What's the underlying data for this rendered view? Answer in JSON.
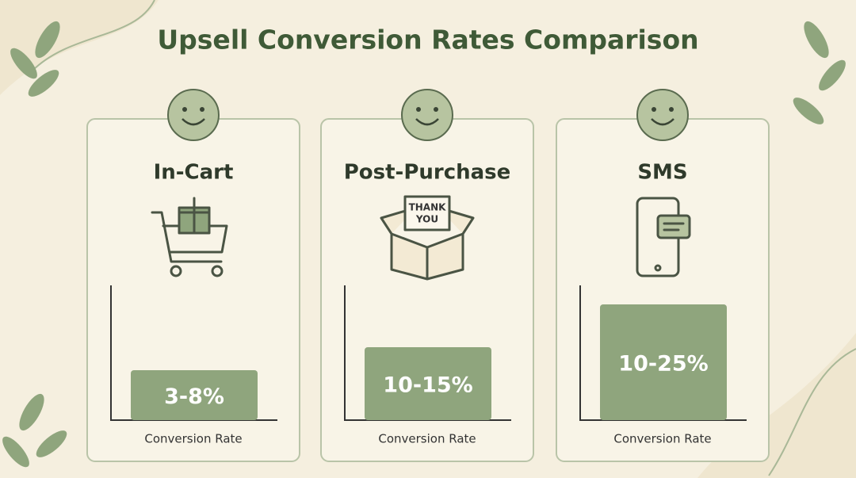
{
  "header": {
    "title": "Upsell Conversion Rates Comparison"
  },
  "cards": [
    {
      "label": "In-Cart",
      "value_label": "3-8%",
      "axis_label": "Conversion Rate"
    },
    {
      "label": "Post-Purchase",
      "value_label": "10-15%",
      "axis_label": "Conversion Rate",
      "icon_text": [
        "THANK",
        "YOU"
      ]
    },
    {
      "label": "SMS",
      "value_label": "10-25%",
      "axis_label": "Conversion Rate"
    }
  ]
}
